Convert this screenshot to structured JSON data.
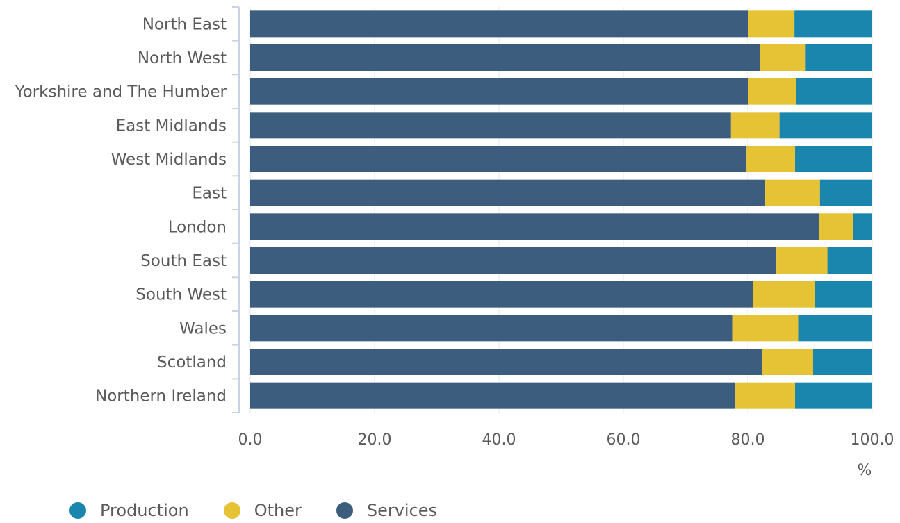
{
  "chart_data": {
    "type": "bar",
    "orientation": "horizontal",
    "stacked": true,
    "categories": [
      "North East",
      "North West",
      "Yorkshire and The Humber",
      "East Midlands",
      "West Midlands",
      "East",
      "London",
      "South East",
      "South West",
      "Wales",
      "Scotland",
      "Northern Ireland"
    ],
    "series": [
      {
        "name": "Services",
        "color": "#3c5d7d",
        "values": [
          80.0,
          82.0,
          80.0,
          77.3,
          79.8,
          82.8,
          91.5,
          84.6,
          80.8,
          77.5,
          82.3,
          78.0
        ]
      },
      {
        "name": "Other",
        "color": "#e5c335",
        "values": [
          7.5,
          7.3,
          7.8,
          7.8,
          7.8,
          8.8,
          5.4,
          8.2,
          10.0,
          10.6,
          8.2,
          9.6
        ]
      },
      {
        "name": "Production",
        "color": "#1b86ad",
        "values": [
          12.5,
          10.7,
          12.2,
          14.9,
          12.4,
          8.4,
          3.1,
          7.2,
          9.2,
          11.9,
          9.5,
          12.4
        ]
      }
    ],
    "xlim": [
      0,
      100
    ],
    "xticks": [
      "0.0",
      "20.0",
      "40.0",
      "60.0",
      "80.0",
      "100.0"
    ],
    "unit": "%",
    "grid": true,
    "legend_position": "bottom-left",
    "legend": [
      {
        "label": "Production",
        "color": "#1b86ad"
      },
      {
        "label": "Other",
        "color": "#e5c335"
      },
      {
        "label": "Services",
        "color": "#3c5d7d"
      }
    ]
  }
}
